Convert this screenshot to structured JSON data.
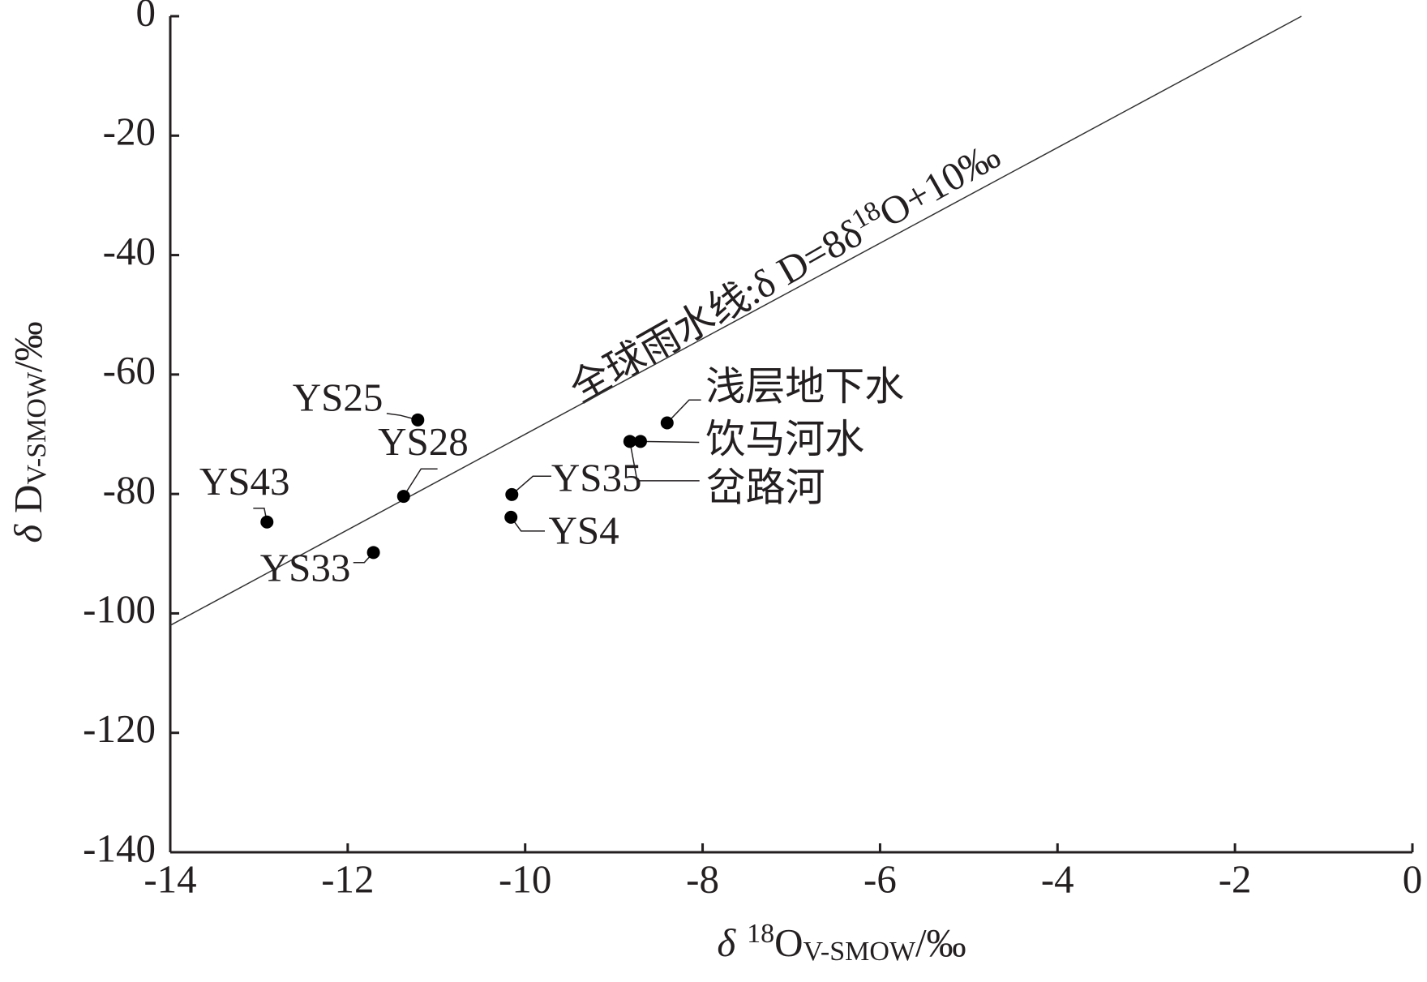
{
  "chart_data": {
    "type": "scatter",
    "xlabel_parts": [
      "δ",
      "18",
      "O",
      "V-SMOW",
      "/‰"
    ],
    "ylabel_parts": [
      "δ",
      "D",
      "V-SMOW",
      "/‰"
    ],
    "xlim": [
      -14,
      0
    ],
    "xticks": [
      -14,
      -12,
      -10,
      -8,
      -6,
      -4,
      -2,
      0
    ],
    "ylim": [
      -140,
      0
    ],
    "yticks": [
      -140,
      -120,
      -100,
      -80,
      -60,
      -40,
      -20,
      0
    ],
    "line": {
      "name_parts": [
        "全球雨水线:δ D=8δ",
        "18",
        "O+10‰"
      ],
      "x": [
        -14,
        -1.25
      ],
      "values": [
        -102,
        0
      ],
      "color": "#333333"
    },
    "series": [
      {
        "color": "#000000",
        "labels": [
          "YS25",
          "YS28",
          "YS43",
          "YS33",
          "YS35",
          "YS4",
          "浅层地下水",
          "饮马河水",
          "岔路河"
        ],
        "x": [
          -11.21,
          -11.37,
          -12.91,
          -11.71,
          -10.15,
          -10.16,
          -8.4,
          -8.7,
          -8.82
        ],
        "values": [
          -67.6,
          -80.4,
          -84.7,
          -89.8,
          -80.1,
          -83.9,
          -68.1,
          -71.2,
          -71.2
        ]
      }
    ]
  }
}
